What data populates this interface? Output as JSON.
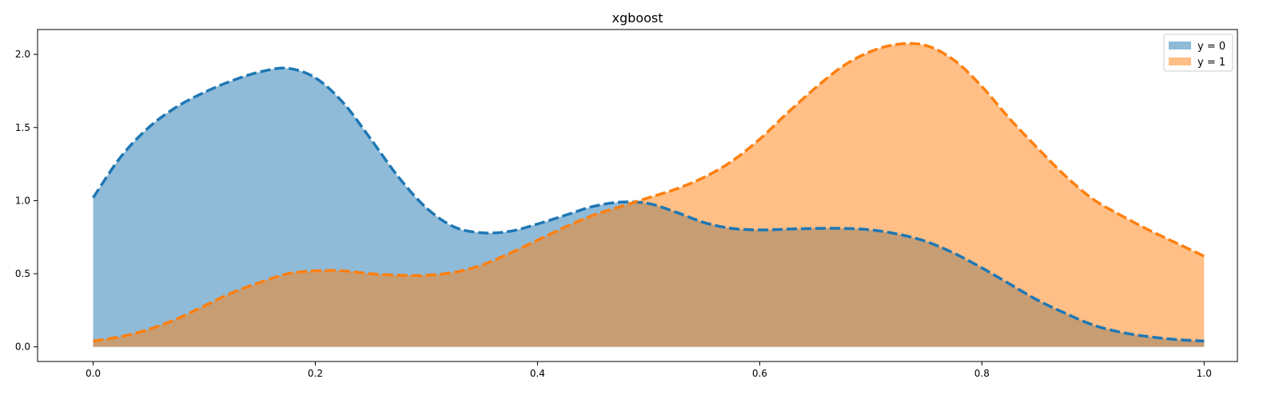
{
  "chart_data": {
    "type": "area",
    "title": "xgboost",
    "xlabel": "",
    "ylabel": "",
    "xlim": [
      -0.05,
      1.03
    ],
    "ylim": [
      -0.1,
      2.17
    ],
    "xticks": [
      0.0,
      0.2,
      0.4,
      0.6,
      0.8,
      1.0
    ],
    "xtick_labels": [
      "0.0",
      "0.2",
      "0.4",
      "0.6",
      "0.8",
      "1.0"
    ],
    "yticks": [
      0.0,
      0.5,
      1.0,
      1.5,
      2.0
    ],
    "ytick_labels": [
      "0.0",
      "0.5",
      "1.0",
      "1.5",
      "2.0"
    ],
    "grid": false,
    "legend_position": "top-right",
    "line_style": "dashed",
    "fill_opacity": 0.5,
    "series": [
      {
        "name": "y = 0",
        "color": "#1f77b4",
        "x": [
          0.0,
          0.025,
          0.05,
          0.075,
          0.1,
          0.125,
          0.15,
          0.175,
          0.2,
          0.225,
          0.25,
          0.275,
          0.3,
          0.325,
          0.35,
          0.375,
          0.4,
          0.425,
          0.45,
          0.475,
          0.5,
          0.525,
          0.55,
          0.575,
          0.6,
          0.625,
          0.65,
          0.675,
          0.7,
          0.725,
          0.75,
          0.775,
          0.8,
          0.825,
          0.85,
          0.875,
          0.9,
          0.925,
          0.95,
          0.975,
          1.0
        ],
        "y": [
          1.02,
          1.3,
          1.5,
          1.64,
          1.74,
          1.82,
          1.88,
          1.905,
          1.84,
          1.67,
          1.42,
          1.16,
          0.95,
          0.82,
          0.78,
          0.79,
          0.84,
          0.9,
          0.96,
          0.99,
          0.98,
          0.92,
          0.85,
          0.81,
          0.8,
          0.805,
          0.81,
          0.81,
          0.8,
          0.77,
          0.72,
          0.64,
          0.54,
          0.43,
          0.32,
          0.23,
          0.15,
          0.1,
          0.07,
          0.05,
          0.04
        ]
      },
      {
        "name": "y = 1",
        "color": "#ff7f0e",
        "x": [
          0.0,
          0.025,
          0.05,
          0.075,
          0.1,
          0.125,
          0.15,
          0.175,
          0.2,
          0.225,
          0.25,
          0.275,
          0.3,
          0.325,
          0.35,
          0.375,
          0.4,
          0.425,
          0.45,
          0.475,
          0.5,
          0.525,
          0.55,
          0.575,
          0.6,
          0.625,
          0.65,
          0.675,
          0.7,
          0.725,
          0.75,
          0.775,
          0.8,
          0.825,
          0.85,
          0.875,
          0.9,
          0.925,
          0.95,
          0.975,
          1.0
        ],
        "y": [
          0.04,
          0.07,
          0.12,
          0.19,
          0.28,
          0.37,
          0.44,
          0.5,
          0.52,
          0.52,
          0.5,
          0.49,
          0.49,
          0.51,
          0.56,
          0.64,
          0.73,
          0.82,
          0.9,
          0.96,
          1.02,
          1.08,
          1.16,
          1.27,
          1.42,
          1.6,
          1.77,
          1.92,
          2.02,
          2.07,
          2.06,
          1.96,
          1.78,
          1.56,
          1.36,
          1.17,
          1.01,
          0.9,
          0.8,
          0.71,
          0.62
        ]
      }
    ]
  }
}
